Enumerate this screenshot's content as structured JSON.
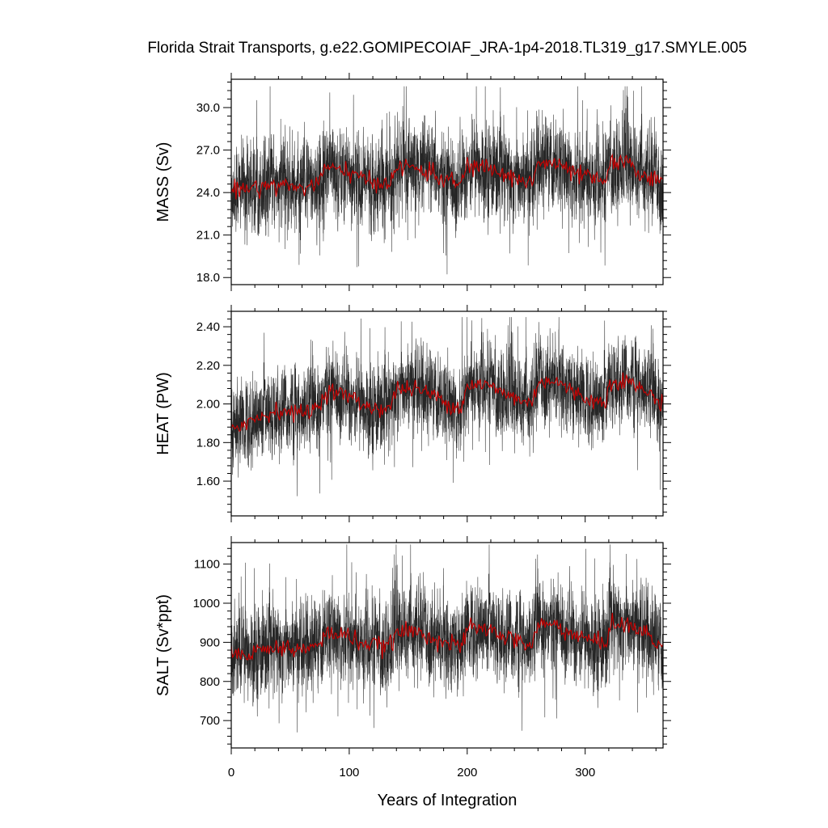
{
  "title": "Florida Strait Transports, g.e22.GOMIPECOIAF_JRA-1p4-2018.TL319_g17.SMYLE.005",
  "xlabel": "Years of Integration",
  "colors": {
    "raw": "#000000",
    "smoothed": "#cc0000",
    "frame": "#000000"
  },
  "chart_data": [
    {
      "type": "line",
      "ylabel": "MASS (Sv)",
      "xlim": [
        0,
        366
      ],
      "ylim": [
        17.5,
        32.0
      ],
      "xticks": [
        0,
        100,
        200,
        300
      ],
      "xtick_labels": [
        "0",
        "100",
        "200",
        "300"
      ],
      "yticks": [
        18.0,
        21.0,
        24.0,
        27.0,
        30.0
      ],
      "ytick_labels": [
        "18.0",
        "21.0",
        "24.0",
        "27.0",
        "30.0"
      ],
      "series": [
        {
          "role": "monthly",
          "color": "#000000",
          "shape": {
            "n": 4392,
            "mean": 25.0,
            "spread": 1.45,
            "spike_min": 17.8,
            "spike_max": 31.5
          }
        },
        {
          "role": "annual-mean",
          "color": "#cc0000",
          "x": [
            0,
            20,
            40,
            60,
            75,
            80,
            90,
            100,
            110,
            120,
            135,
            140,
            155,
            170,
            185,
            195,
            200,
            215,
            230,
            245,
            255,
            260,
            275,
            290,
            305,
            318,
            320,
            335,
            350,
            366
          ],
          "y": [
            24.2,
            24.4,
            24.6,
            24.3,
            24.8,
            25.8,
            25.5,
            25.6,
            24.9,
            24.7,
            24.8,
            25.7,
            25.8,
            25.3,
            24.8,
            24.6,
            25.9,
            25.8,
            25.3,
            24.9,
            24.7,
            26.1,
            26.0,
            25.4,
            25.0,
            24.7,
            26.1,
            26.0,
            25.3,
            24.6
          ]
        }
      ]
    },
    {
      "type": "line",
      "ylabel": "HEAT (PW)",
      "xlim": [
        0,
        366
      ],
      "ylim": [
        1.42,
        2.48
      ],
      "xticks": [
        0,
        100,
        200,
        300
      ],
      "xtick_labels": [
        "0",
        "100",
        "200",
        "300"
      ],
      "yticks": [
        1.6,
        1.8,
        2.0,
        2.2,
        2.4
      ],
      "ytick_labels": [
        "1.60",
        "1.80",
        "2.00",
        "2.20",
        "2.40"
      ],
      "series": [
        {
          "role": "monthly",
          "color": "#000000",
          "shape": {
            "n": 4392,
            "mean": 2.01,
            "spread": 0.1,
            "spike_min": 1.44,
            "spike_max": 2.45
          }
        },
        {
          "role": "annual-mean",
          "color": "#cc0000",
          "x": [
            0,
            20,
            40,
            60,
            75,
            80,
            90,
            100,
            110,
            120,
            135,
            140,
            155,
            170,
            185,
            195,
            200,
            215,
            230,
            245,
            255,
            260,
            275,
            290,
            305,
            318,
            320,
            335,
            350,
            366
          ],
          "y": [
            1.88,
            1.92,
            1.97,
            1.95,
            1.99,
            2.07,
            2.06,
            2.04,
            2.0,
            1.98,
            1.98,
            2.08,
            2.08,
            2.05,
            2.0,
            1.98,
            2.1,
            2.1,
            2.06,
            2.02,
            2.0,
            2.12,
            2.12,
            2.06,
            2.02,
            2.0,
            2.12,
            2.12,
            2.07,
            2.0
          ]
        }
      ]
    },
    {
      "type": "line",
      "ylabel": "SALT (Sv*ppt)",
      "xlim": [
        0,
        366
      ],
      "ylim": [
        630,
        1155
      ],
      "xticks": [
        0,
        100,
        200,
        300
      ],
      "xtick_labels": [
        "0",
        "100",
        "200",
        "300"
      ],
      "yticks": [
        700,
        800,
        900,
        1000,
        1100
      ],
      "ytick_labels": [
        "700",
        "800",
        "900",
        "1000",
        "1100"
      ],
      "series": [
        {
          "role": "monthly",
          "color": "#000000",
          "shape": {
            "n": 4392,
            "mean": 905,
            "spread": 52,
            "spike_min": 635,
            "spike_max": 1150
          }
        },
        {
          "role": "annual-mean",
          "color": "#cc0000",
          "x": [
            0,
            20,
            40,
            60,
            75,
            80,
            90,
            100,
            110,
            120,
            135,
            140,
            155,
            170,
            185,
            195,
            200,
            215,
            230,
            245,
            255,
            260,
            275,
            290,
            305,
            318,
            320,
            335,
            350,
            366
          ],
          "y": [
            868,
            878,
            888,
            880,
            892,
            925,
            920,
            918,
            898,
            892,
            892,
            925,
            928,
            915,
            895,
            888,
            935,
            935,
            918,
            900,
            892,
            945,
            945,
            920,
            905,
            895,
            948,
            945,
            925,
            890
          ]
        }
      ]
    }
  ]
}
